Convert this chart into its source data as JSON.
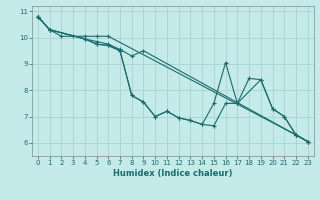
{
  "xlabel": "Humidex (Indice chaleur)",
  "ylabel": "",
  "xlim": [
    -0.5,
    23.5
  ],
  "ylim": [
    5.5,
    11.2
  ],
  "bg_color": "#c5eaea",
  "grid_color": "#a8d4d4",
  "line_color": "#1a6b6b",
  "lines": [
    {
      "x": [
        0,
        1,
        2,
        3,
        4,
        5,
        6,
        22,
        23
      ],
      "y": [
        10.8,
        10.3,
        10.05,
        10.05,
        10.05,
        10.05,
        10.05,
        6.3,
        6.05
      ]
    },
    {
      "x": [
        0,
        1,
        4,
        5,
        6,
        7,
        8,
        9,
        22,
        23
      ],
      "y": [
        10.8,
        10.3,
        9.95,
        9.85,
        9.75,
        9.55,
        9.3,
        9.5,
        6.3,
        6.05
      ]
    },
    {
      "x": [
        0,
        1,
        4,
        5,
        6,
        7,
        8,
        9,
        10,
        11,
        12,
        13,
        14,
        15,
        16,
        17,
        19,
        20,
        21,
        22,
        23
      ],
      "y": [
        10.8,
        10.3,
        9.95,
        9.75,
        9.7,
        9.5,
        7.8,
        7.55,
        7.0,
        7.2,
        6.95,
        6.85,
        6.7,
        7.5,
        9.05,
        7.5,
        8.4,
        7.3,
        7.0,
        6.3,
        6.05
      ]
    },
    {
      "x": [
        0,
        1,
        4,
        5,
        6,
        7,
        8,
        9,
        10,
        11,
        12,
        13,
        14,
        15,
        16,
        17,
        18,
        19,
        20,
        21,
        22,
        23
      ],
      "y": [
        10.8,
        10.3,
        9.95,
        9.75,
        9.7,
        9.5,
        7.8,
        7.55,
        7.0,
        7.2,
        6.95,
        6.85,
        6.7,
        6.65,
        7.5,
        7.5,
        8.45,
        8.4,
        7.3,
        7.0,
        6.3,
        6.05
      ]
    }
  ]
}
